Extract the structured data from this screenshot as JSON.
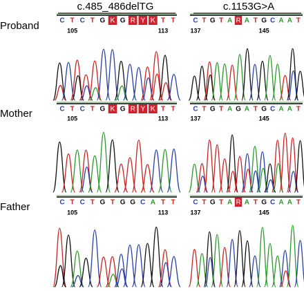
{
  "rows": [
    "Proband",
    "Mother",
    "Father"
  ],
  "columns": [
    {
      "title": "c.485_486delTG",
      "samples": [
        {
          "sequence": [
            "C",
            "T",
            "C",
            "T",
            "G",
            "K",
            "G",
            "R",
            "Y",
            "K",
            "T",
            "T"
          ],
          "highlighted": [
            5,
            7,
            8,
            9
          ],
          "positions": [
            105,
            113
          ]
        },
        {
          "sequence": [
            "C",
            "T",
            "C",
            "T",
            "G",
            "K",
            "G",
            "R",
            "Y",
            "K",
            "T",
            "T"
          ],
          "highlighted": [
            5,
            7,
            8,
            9
          ],
          "positions": [
            105,
            113
          ]
        },
        {
          "sequence": [
            "C",
            "T",
            "C",
            "T",
            "G",
            "T",
            "G",
            "G",
            "C",
            "A",
            "T",
            "T"
          ],
          "highlighted": [],
          "positions": [
            105,
            113
          ]
        }
      ]
    },
    {
      "title": "c.1153G>A",
      "samples": [
        {
          "sequence": [
            "C",
            "T",
            "G",
            "T",
            "A",
            "R",
            "A",
            "T",
            "G",
            "C",
            "A",
            "A",
            "T"
          ],
          "highlighted": [
            5
          ],
          "positions": [
            137,
            145
          ]
        },
        {
          "sequence": [
            "C",
            "T",
            "G",
            "T",
            "A",
            "G",
            "A",
            "T",
            "G",
            "C",
            "A",
            "A",
            "T"
          ],
          "highlighted": [],
          "positions": [
            137,
            145
          ]
        },
        {
          "sequence": [
            "C",
            "T",
            "G",
            "T",
            "A",
            "R",
            "A",
            "T",
            "G",
            "C",
            "A",
            "A",
            "T"
          ],
          "highlighted": [
            5
          ],
          "positions": [
            137,
            145
          ]
        }
      ]
    }
  ]
}
